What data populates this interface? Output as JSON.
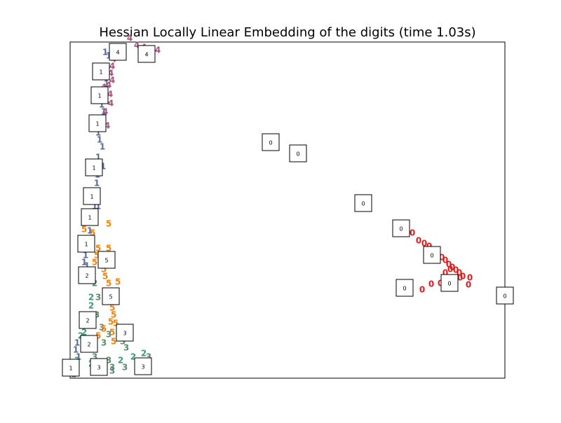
{
  "chart_data": {
    "type": "scatter",
    "title": "Hessian Locally Linear Embedding of the digits (time 1.03s)",
    "xlim": [
      0,
      620
    ],
    "ylim": [
      0,
      480
    ],
    "series": [
      {
        "name": "0",
        "color": "#e31a1c",
        "x": [
          488,
          497,
          505,
          512,
          520,
          530,
          535,
          540,
          545,
          550,
          555,
          560,
          548,
          538,
          528,
          515,
          502,
          570,
          568,
          556,
          542,
          535
        ],
        "y": [
          207,
          196,
          192,
          188,
          180,
          172,
          168,
          162,
          158,
          154,
          150,
          145,
          140,
          137,
          135,
          134,
          126,
          143,
          133,
          143,
          155,
          150
        ]
      },
      {
        "name": "1",
        "color": "#5b6b98",
        "x": [
          50,
          55,
          48,
          52,
          45,
          48,
          43,
          40,
          42,
          46,
          40,
          47,
          39,
          38,
          36,
          35,
          40,
          30,
          28,
          25,
          22,
          20,
          24,
          20,
          10,
          8,
          6,
          5,
          12
        ],
        "y": [
          465,
          460,
          440,
          420,
          390,
          380,
          365,
          350,
          340,
          330,
          315,
          302,
          290,
          278,
          260,
          245,
          245,
          230,
          210,
          190,
          175,
          165,
          160,
          150,
          50,
          40,
          20,
          5,
          30
        ]
      },
      {
        "name": "2",
        "color": "#3d9a70",
        "x": [
          35,
          30,
          30,
          20,
          105,
          90,
          72,
          15,
          25,
          10,
          40,
          30
        ],
        "y": [
          135,
          115,
          103,
          65,
          35,
          30,
          25,
          60,
          40,
          25,
          15,
          20
        ]
      },
      {
        "name": "3",
        "color": "#5e8a6c",
        "x": [
          40,
          52,
          38,
          45,
          55,
          80,
          75,
          78,
          60,
          55,
          112,
          48,
          45,
          60,
          35
        ],
        "y": [
          115,
          115,
          90,
          72,
          62,
          43,
          52,
          15,
          15,
          25,
          30,
          50,
          10,
          10,
          30
        ]
      },
      {
        "name": "4",
        "color": "#a8527e",
        "x": [
          85,
          95,
          105,
          115,
          125,
          65,
          62,
          60,
          58,
          60,
          55,
          57,
          52,
          58,
          50,
          53,
          48
        ],
        "y": [
          485,
          475,
          472,
          470,
          468,
          470,
          455,
          445,
          435,
          425,
          418,
          405,
          395,
          392,
          380,
          360,
          415
        ]
      },
      {
        "name": "5",
        "color": "#ff7f00",
        "x": [
          55,
          20,
          32,
          40,
          55,
          38,
          35,
          48,
          50,
          68,
          55,
          60,
          62,
          58,
          65,
          60,
          62,
          48,
          40
        ],
        "y": [
          220,
          212,
          207,
          185,
          185,
          175,
          165,
          155,
          145,
          137,
          135,
          100,
          90,
          80,
          78,
          65,
          52,
          70,
          60
        ]
      }
    ],
    "thumbnails": {
      "x": [
        68,
        109,
        44,
        42,
        39,
        34,
        31,
        28,
        23,
        52,
        24,
        58,
        25,
        78,
        27,
        1,
        41,
        104,
        286,
        325,
        418,
        472,
        516,
        541,
        477,
        620
      ],
      "y": [
        466,
        463,
        438,
        404,
        364,
        301,
        260,
        230,
        192,
        169,
        147,
        117,
        83,
        65,
        49,
        15,
        16,
        17,
        337,
        321,
        250,
        214,
        176,
        136,
        129,
        118
      ],
      "labels": [
        "4",
        "4",
        "1",
        "1",
        "1",
        "1",
        "1",
        "1",
        "1",
        "5",
        "2",
        "5",
        "2",
        "3",
        "2",
        "1",
        "3",
        "3",
        "0",
        "0",
        "0",
        "0",
        "0",
        "0",
        "0",
        "0"
      ]
    }
  }
}
